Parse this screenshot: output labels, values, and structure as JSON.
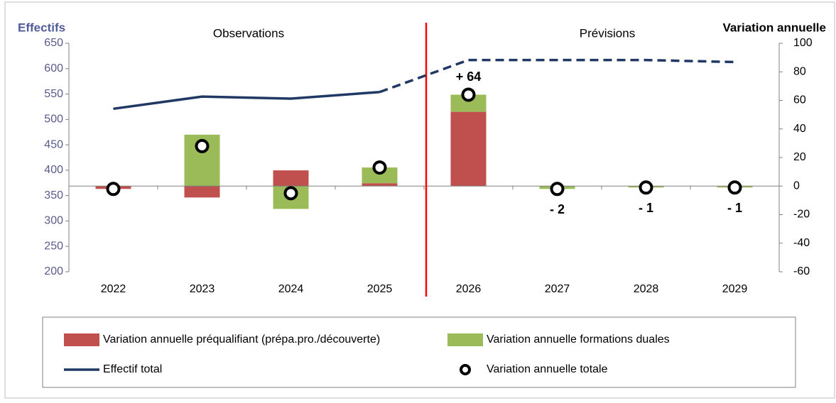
{
  "chart_data": {
    "type": "combo",
    "ylabel": "Effectifs",
    "y2label": "Variation annuelle",
    "annotations": [
      "Observations",
      "Prévisions"
    ],
    "categories": [
      "2022",
      "2023",
      "2024",
      "2025",
      "2026",
      "2027",
      "2028",
      "2029"
    ],
    "ylim": [
      200,
      650
    ],
    "yticks": [
      200,
      250,
      300,
      350,
      400,
      450,
      500,
      550,
      600,
      650
    ],
    "y2lim": [
      -60,
      100
    ],
    "y2ticks": [
      -60,
      -40,
      -20,
      0,
      20,
      40,
      60,
      80,
      100
    ],
    "series": [
      {
        "name": "Variation annuelle préqualifiant (prépa.pro./découverte)",
        "type": "bar",
        "axis": "y2",
        "color": "#c0504d",
        "values": [
          -2,
          -8,
          11,
          2,
          52,
          0,
          0,
          0
        ]
      },
      {
        "name": "Variation annuelle formations duales",
        "type": "bar",
        "axis": "y2",
        "color": "#9bbb59",
        "values": [
          0,
          36,
          -16,
          11,
          12,
          -2,
          -1,
          -1
        ]
      },
      {
        "name": "Effectif total",
        "type": "line",
        "axis": "y",
        "color": "#1f3864",
        "dashed_from": "2025",
        "values": [
          521,
          545,
          541,
          554,
          617,
          617,
          617,
          613
        ]
      },
      {
        "name": "Variation annuelle totale",
        "type": "scatter",
        "axis": "y2",
        "color": "#000000",
        "values": [
          -2,
          28,
          -5,
          13,
          64,
          -2,
          -1,
          -1
        ],
        "value_labels": [
          null,
          null,
          null,
          null,
          "+ 64",
          "- 2",
          "- 1",
          "- 1"
        ]
      }
    ]
  }
}
